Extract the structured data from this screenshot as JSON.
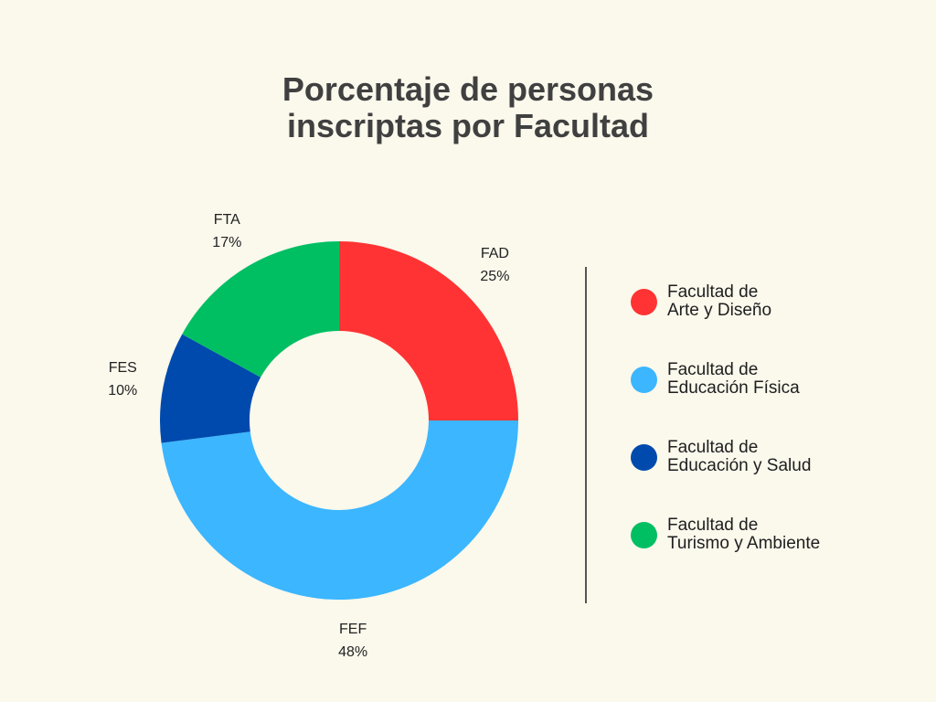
{
  "chart_data": {
    "type": "pie",
    "title_lines": [
      "Porcentaje de personas",
      "inscriptas por Facultad"
    ],
    "start_angle_deg": 0,
    "direction": "clockwise",
    "inner_radius_ratio": 0.5,
    "slices": [
      {
        "label": "FAD",
        "value": 25,
        "value_label": "25%",
        "color": "#FF3333"
      },
      {
        "label": "FEF",
        "value": 48,
        "value_label": "48%",
        "color": "#3BB6FF"
      },
      {
        "label": "FES",
        "value": 10,
        "value_label": "10%",
        "color": "#004AAD"
      },
      {
        "label": "FTA",
        "value": 17,
        "value_label": "17%",
        "color": "#00BF63"
      }
    ],
    "legend_placement": "right",
    "legend": [
      {
        "lines": [
          "Facultad de",
          "Arte y Diseño"
        ],
        "color": "#FF3333"
      },
      {
        "lines": [
          "Facultad de",
          "Educación Física"
        ],
        "color": "#3BB6FF"
      },
      {
        "lines": [
          "Facultad de",
          "Educación y Salud"
        ],
        "color": "#004AAD"
      },
      {
        "lines": [
          "Facultad de",
          "Turismo y Ambiente"
        ],
        "color": "#00BF63"
      }
    ]
  }
}
